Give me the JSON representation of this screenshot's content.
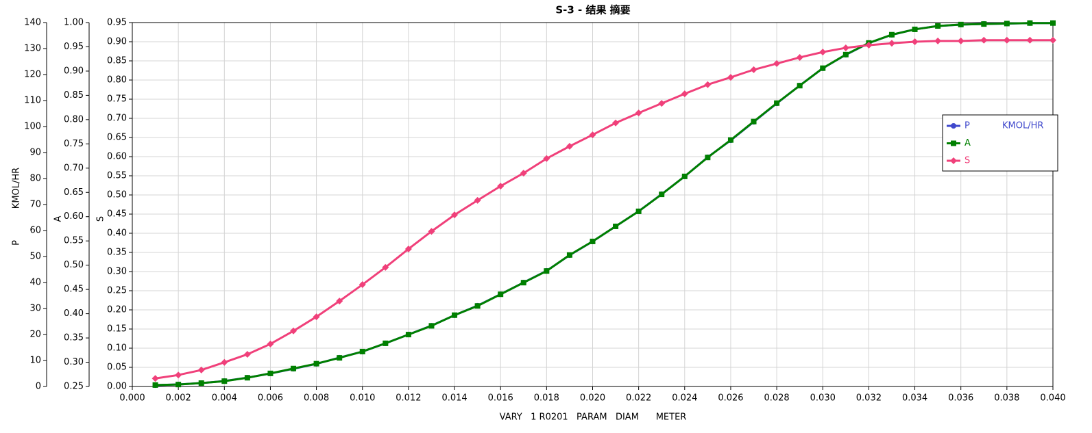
{
  "chart_data": {
    "type": "line",
    "title": "S-3 - 结果 摘要",
    "x_label": "VARY   1 R0201   PARAM   DIAM      METER",
    "y_label": "P",
    "unit": "KMOL/HR",
    "y2_label": "A",
    "y3_label": "S",
    "grid": true,
    "legend": "right",
    "xlim": [
      0,
      0.04
    ],
    "xticks": [
      {
        "value": 0,
        "label": "0.000"
      },
      0.002,
      0.004,
      0.006,
      0.008,
      {
        "value": 0.01,
        "label": "0.010"
      },
      0.012,
      0.014,
      0.016,
      0.018,
      {
        "value": 0.02,
        "label": "0.020"
      },
      0.022,
      0.024,
      0.026,
      0.028,
      {
        "value": 0.03,
        "label": "0.030"
      },
      0.032,
      0.034,
      0.036,
      0.038,
      {
        "value": 0.04,
        "label": "0.040"
      }
    ],
    "ylim": [
      0,
      140
    ],
    "yticks": [
      0,
      10,
      20,
      30,
      40,
      50,
      60,
      70,
      80,
      90,
      100,
      110,
      120,
      130,
      140
    ],
    "y2lim": [
      0.25,
      1
    ],
    "y2ticks": [
      0.25,
      {
        "value": 0.3,
        "label": "0.30"
      },
      0.35,
      {
        "value": 0.4,
        "label": "0.40"
      },
      0.45,
      {
        "value": 0.5,
        "label": "0.50"
      },
      0.55,
      {
        "value": 0.6,
        "label": "0.60"
      },
      0.65,
      {
        "value": 0.7,
        "label": "0.70"
      },
      0.75,
      {
        "value": 0.8,
        "label": "0.80"
      },
      0.85,
      {
        "value": 0.9,
        "label": "0.90"
      },
      0.95,
      {
        "value": 1,
        "label": "1.00"
      }
    ],
    "y3lim": [
      0,
      0.95
    ],
    "y3ticks": [
      {
        "value": 0,
        "label": "0.00"
      },
      0.05,
      {
        "value": 0.1,
        "label": "0.10"
      },
      0.15,
      {
        "value": 0.2,
        "label": "0.20"
      },
      0.25,
      {
        "value": 0.3,
        "label": "0.30"
      },
      0.35,
      {
        "value": 0.4,
        "label": "0.40"
      },
      0.45,
      {
        "value": 0.5,
        "label": "0.50"
      },
      0.55,
      {
        "value": 0.6,
        "label": "0.60"
      },
      0.65,
      {
        "value": 0.7,
        "label": "0.70"
      },
      0.75,
      {
        "value": 0.8,
        "label": "0.80"
      },
      0.85,
      {
        "value": 0.9,
        "label": "0.90"
      },
      0.95
    ],
    "x": [
      0.001,
      0.002,
      0.003,
      0.004,
      0.005,
      0.006,
      0.007,
      0.008,
      0.009,
      0.01,
      0.011,
      0.012,
      0.013,
      0.014,
      0.015,
      0.016,
      0.017,
      0.018,
      0.019,
      0.02,
      0.021,
      0.022,
      0.023,
      0.024,
      0.025,
      0.026,
      0.027,
      0.028,
      0.029,
      0.03,
      0.031,
      0.032,
      0.033,
      0.034,
      0.035,
      0.036,
      0.037,
      0.038,
      0.039,
      0.04
    ],
    "series": [
      {
        "name": "P",
        "color": "#3f48cc",
        "marker": "circle",
        "axis": "y",
        "values": [
          0.5,
          0.8,
          1.3,
          2.1,
          3.4,
          5.0,
          6.8,
          8.7,
          11.1,
          13.4,
          16.6,
          20.0,
          23.4,
          27.4,
          31.1,
          35.5,
          40.0,
          44.5,
          50.5,
          55.8,
          61.6,
          67.4,
          74.0,
          80.8,
          88.2,
          94.7,
          101.8,
          108.9,
          115.8,
          122.4,
          127.6,
          132.1,
          135.3,
          137.4,
          138.7,
          139.2,
          139.5,
          139.6,
          139.8,
          139.8
        ]
      },
      {
        "name": "A",
        "color": "#008000",
        "marker": "square",
        "axis": "y2",
        "values": [
          0.253,
          0.254,
          0.257,
          0.261,
          0.268,
          0.277,
          0.287,
          0.297,
          0.309,
          0.322,
          0.339,
          0.357,
          0.375,
          0.397,
          0.416,
          0.44,
          0.464,
          0.488,
          0.521,
          0.549,
          0.58,
          0.611,
          0.646,
          0.683,
          0.722,
          0.758,
          0.796,
          0.834,
          0.87,
          0.906,
          0.934,
          0.958,
          0.975,
          0.986,
          0.993,
          0.996,
          0.997,
          0.998,
          0.999,
          0.999
        ]
      },
      {
        "name": "S",
        "color": "#f0407a",
        "marker": "diamond",
        "axis": "y3",
        "values": [
          0.021,
          0.03,
          0.043,
          0.063,
          0.084,
          0.111,
          0.145,
          0.182,
          0.223,
          0.266,
          0.311,
          0.359,
          0.405,
          0.448,
          0.486,
          0.523,
          0.557,
          0.595,
          0.627,
          0.657,
          0.688,
          0.714,
          0.739,
          0.764,
          0.788,
          0.807,
          0.827,
          0.843,
          0.859,
          0.873,
          0.884,
          0.891,
          0.896,
          0.9,
          0.902,
          0.902,
          0.904,
          0.904,
          0.904,
          0.904
        ]
      }
    ]
  }
}
